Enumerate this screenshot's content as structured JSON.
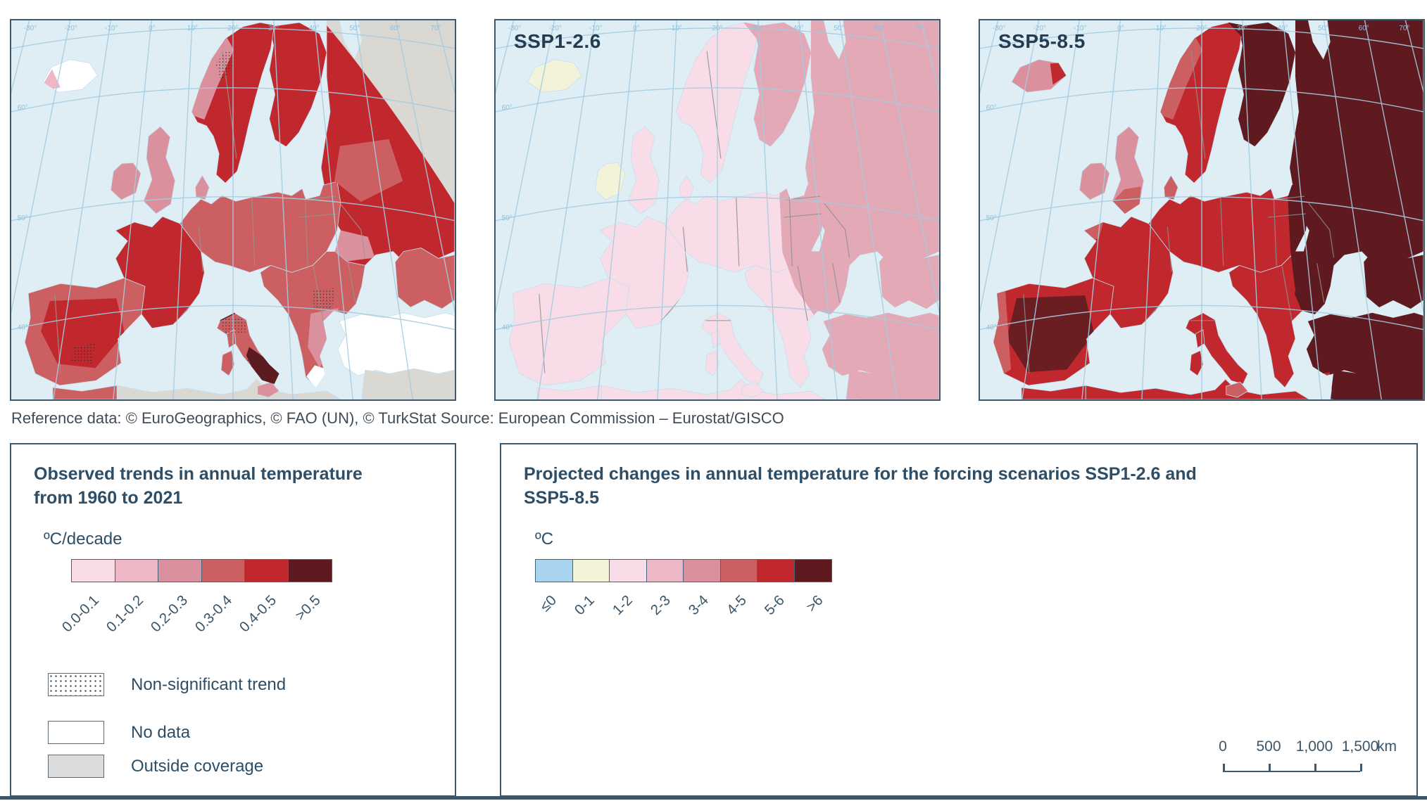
{
  "attribution": {
    "text": "Reference data: © EuroGeographics, © FAO (UN), © TurkStat Source: European Commission – Eurostat/GISCO"
  },
  "maps": {
    "graticule_top_labels": [
      "-30°",
      "-20°",
      "-10°",
      "0°",
      "10°",
      "20°",
      "30°",
      "40°",
      "50°",
      "60°",
      "70°"
    ],
    "graticule_side_labels": [
      "60°",
      "50°",
      "40°"
    ],
    "colors": {
      "sea": "#dfeef5",
      "graticule": "#a6cce0",
      "graticule_label": "#8fbed8",
      "frame": "#3c5a70",
      "coastline": "#c6dfec",
      "outside_coverage": "#d9d8d3",
      "no_data": "#ffffff"
    },
    "panels": [
      {
        "label": "",
        "border_color": "#9a948c",
        "region_fills": {
          "east": "#c0282d",
          "finland": "#c0282d",
          "scandinavia": "#c0282d",
          "central": "#cb5f62",
          "denmark": "#db909d",
          "balkans": "#cb5f62",
          "caucasus": "#cb5f62",
          "anatolia": "#ffffff",
          "mideast": "#d9d8d3",
          "africa_w": "#cb5f62",
          "africa_e": "#d9d8d3",
          "france": "#c0282d",
          "iberia": "#cb5f62",
          "italy": "#cb5f62",
          "sicily": "#db909d",
          "sardinia": "#cb5f62",
          "corsica": "#cb5f62",
          "gb": "#db909d",
          "ireland": "#db909d",
          "iceland": "#ffffff"
        },
        "overlay_colors": {
          "iberia_interior": "#c0282d",
          "alps_dark": "#5f1a1f",
          "italy_south_dark": "#5f1a1f",
          "norway_coast": "#db909d",
          "balkans_south": "#db909d",
          "greece_white": "#ffffff",
          "east_light": "#db909d",
          "russia_light": "#cb5f62",
          "iceland_pink": "#eeb7c6",
          "gray_wedge": "#d9d8d3"
        }
      },
      {
        "label": "SSP1-2.6",
        "border_color": "#8f8f8f",
        "region_fills": {
          "east": "#e3a9b6",
          "finland": "#e3a9b6",
          "scandinavia": "#f8dce8",
          "central": "#f8dce8",
          "denmark": "#f8dce8",
          "balkans": "#f8dce8",
          "caucasus": "#e3a9b6",
          "anatolia": "#f8dce8",
          "mideast": "#e3a9b6",
          "africa_w": "#f8dce8",
          "africa_e": "#f8dce8",
          "france": "#f8dce8",
          "iberia": "#f8dce8",
          "italy": "#f8dce8",
          "sicily": "#f8dce8",
          "sardinia": "#f8dce8",
          "corsica": "#f8dce8",
          "gb": "#f8dce8",
          "ireland": "#f3f3d9",
          "iceland": "#f3f3d9"
        },
        "overlay_colors": {
          "east_zone": "#e3a9b6"
        }
      },
      {
        "label": "SSP5-8.5",
        "border_color": "#8f8f8f",
        "region_fills": {
          "east": "#5f1a1f",
          "finland": "#5f1a1f",
          "scandinavia": "#c0282d",
          "central": "#c0282d",
          "denmark": "#cb5f62",
          "balkans": "#c0282d",
          "caucasus": "#5f1a1f",
          "anatolia": "#c0282d",
          "mideast": "#5f1a1f",
          "africa_w": "#c0282d",
          "africa_e": "#c0282d",
          "france": "#c0282d",
          "iberia": "#c0282d",
          "italy": "#c0282d",
          "sicily": "#cb5f62",
          "sardinia": "#c0282d",
          "corsica": "#c0282d",
          "gb": "#db909d",
          "ireland": "#db909d",
          "iceland": "#db909d"
        },
        "overlay_colors": {
          "dark_zone": "#5f1a1f",
          "balkan_dark": "#5f1a1f",
          "iberia_interior": "#6b1e22",
          "portugal_coast": "#cb5f62",
          "norway_coast": "#cb5f62",
          "uk_south": "#cb5f62",
          "brittany": "#cb5f62",
          "iceland_red": "#c0282d"
        }
      }
    ]
  },
  "legend_observed": {
    "title": "Observed trends in annual temperature from 1960 to 2021",
    "unit": "ºC/decade",
    "classes": [
      {
        "label": "0.0-0.1",
        "color": "#f8dce8"
      },
      {
        "label": "0.1-0.2",
        "color": "#eeb7c6"
      },
      {
        "label": "0.2-0.3",
        "color": "#db909d"
      },
      {
        "label": "0.3-0.4",
        "color": "#cb5f62"
      },
      {
        "label": "0.4-0.5",
        "color": "#c0282d"
      },
      {
        "label": ">0.5",
        "color": "#5f1a1f"
      }
    ],
    "extra_classes": [
      {
        "label": "Non-significant trend",
        "style": "dotted"
      },
      {
        "label": "No data",
        "style": "white"
      },
      {
        "label": "Outside coverage",
        "style": "gray"
      }
    ]
  },
  "legend_projected": {
    "title": "Projected changes in annual temperature for the forcing scenarios SSP1-2.6 and SSP5-8.5",
    "unit": "ºC",
    "classes": [
      {
        "label": "≤0",
        "color": "#a9d4f0"
      },
      {
        "label": "0-1",
        "color": "#f3f3d9"
      },
      {
        "label": "1-2",
        "color": "#f8dce8"
      },
      {
        "label": "2-3",
        "color": "#eeb7c6"
      },
      {
        "label": "3-4",
        "color": "#db909d"
      },
      {
        "label": "4-5",
        "color": "#cb5f62"
      },
      {
        "label": "5-6",
        "color": "#c0282d"
      },
      {
        "label": ">6",
        "color": "#5f1a1f"
      }
    ],
    "scalebar": {
      "tick_labels": [
        "0",
        "500",
        "1,000",
        "1,500"
      ],
      "unit": "km"
    }
  }
}
